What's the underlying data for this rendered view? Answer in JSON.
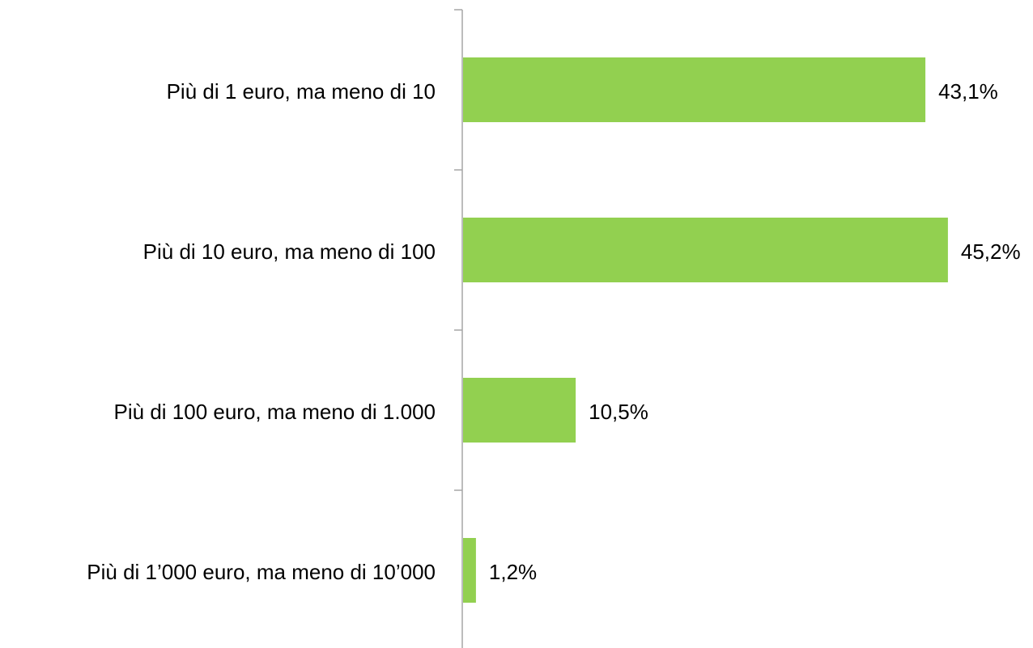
{
  "chart_data": {
    "type": "hbar",
    "categories": [
      "Più di 1 euro, ma meno di 10",
      "Più di 10 euro, ma meno di 100",
      "Più di 100 euro, ma meno di 1.000",
      "Più di 1’000 euro, ma meno di 10’000"
    ],
    "values": [
      43.1,
      45.2,
      10.5,
      1.2
    ],
    "value_labels": [
      "43,1%",
      "45,2%",
      "10,5%",
      "1,2%"
    ],
    "color": "#92d050"
  }
}
